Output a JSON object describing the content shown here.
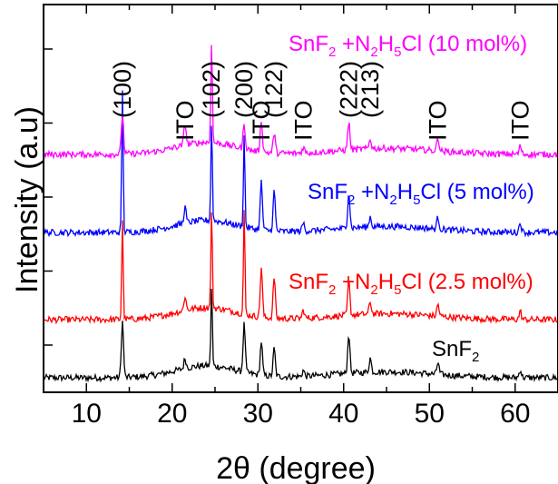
{
  "chart_data": {
    "type": "line",
    "title": "",
    "xlabel": "2θ (degree)",
    "ylabel": "Intensity (a.u)",
    "xlim": [
      5,
      65
    ],
    "x_ticks": [
      10,
      20,
      30,
      40,
      50,
      60
    ],
    "y_ticks_shown_as_labels": false,
    "grid": false,
    "legend": "inline labels beside each pattern",
    "peak_labels": [
      {
        "text": "(100)",
        "x": 14.2
      },
      {
        "text": "ITO",
        "x": 21.5
      },
      {
        "text": "(102)",
        "x": 24.6
      },
      {
        "text": "(200)",
        "x": 28.4
      },
      {
        "text": "ITO",
        "x": 30.4
      },
      {
        "text": "(122)",
        "x": 31.9
      },
      {
        "text": "ITO",
        "x": 35.3
      },
      {
        "text": "(222)",
        "x": 40.6
      },
      {
        "text": "(213)",
        "x": 43.1
      },
      {
        "text": "ITO",
        "x": 51.0
      },
      {
        "text": "ITO",
        "x": 60.6
      }
    ],
    "series": [
      {
        "name": "SnF2",
        "label_parts": [
          {
            "t": "SnF",
            "s": "n"
          },
          {
            "t": "2",
            "s": "sub"
          }
        ],
        "color": "#000000",
        "baseline": 0,
        "peaks": [
          [
            14.2,
            28
          ],
          [
            21.5,
            5
          ],
          [
            24.6,
            40
          ],
          [
            28.4,
            24
          ],
          [
            30.4,
            17
          ],
          [
            31.9,
            14
          ],
          [
            35.3,
            3
          ],
          [
            40.6,
            20
          ],
          [
            43.1,
            7
          ],
          [
            51.0,
            6
          ],
          [
            60.6,
            4
          ]
        ]
      },
      {
        "name": "SnF2 +N2H5Cl (2.5 mol%)",
        "label_parts": [
          {
            "t": "SnF",
            "s": "n"
          },
          {
            "t": "2",
            "s": "sub"
          },
          {
            "t": " +N",
            "s": "n"
          },
          {
            "t": "2",
            "s": "sub"
          },
          {
            "t": "H",
            "s": "n"
          },
          {
            "t": "5",
            "s": "sub"
          },
          {
            "t": "Cl (2.5 mol%)",
            "s": "n"
          }
        ],
        "color": "#ff0000",
        "baseline": 1,
        "peaks": [
          [
            14.2,
            50
          ],
          [
            21.5,
            7
          ],
          [
            24.6,
            49
          ],
          [
            28.4,
            52
          ],
          [
            30.4,
            25
          ],
          [
            31.9,
            21
          ],
          [
            35.3,
            4
          ],
          [
            40.6,
            17
          ],
          [
            43.1,
            6
          ],
          [
            51.0,
            6
          ],
          [
            60.6,
            4
          ]
        ]
      },
      {
        "name": "SnF2 +N2H5Cl (5 mol%)",
        "label_parts": [
          {
            "t": "SnF",
            "s": "n"
          },
          {
            "t": "2",
            "s": "sub"
          },
          {
            "t": " +N",
            "s": "n"
          },
          {
            "t": "2",
            "s": "sub"
          },
          {
            "t": "H",
            "s": "n"
          },
          {
            "t": "5",
            "s": "sub"
          },
          {
            "t": "Cl (5 mol%)",
            "s": "n"
          }
        ],
        "color": "#0000ff",
        "baseline": 2,
        "peaks": [
          [
            14.2,
            72
          ],
          [
            21.5,
            8
          ],
          [
            24.6,
            50
          ],
          [
            28.4,
            46
          ],
          [
            30.4,
            24
          ],
          [
            31.9,
            20
          ],
          [
            35.3,
            4
          ],
          [
            40.6,
            18
          ],
          [
            43.1,
            5
          ],
          [
            51.0,
            6
          ],
          [
            60.6,
            5
          ]
        ]
      },
      {
        "name": "SnF2 +N2H5Cl (10 mol%)",
        "label_parts": [
          {
            "t": "SnF",
            "s": "n"
          },
          {
            "t": "2",
            "s": "sub"
          },
          {
            "t": " +N",
            "s": "n"
          },
          {
            "t": "2",
            "s": "sub"
          },
          {
            "t": "H",
            "s": "n"
          },
          {
            "t": "5",
            "s": "sub"
          },
          {
            "t": "Cl (10 mol%)",
            "s": "n"
          }
        ],
        "color": "#ff00ff",
        "baseline": 3,
        "peaks": [
          [
            14.2,
            20
          ],
          [
            21.5,
            11
          ],
          [
            24.6,
            52
          ],
          [
            28.4,
            12
          ],
          [
            30.4,
            16
          ],
          [
            31.9,
            10
          ],
          [
            35.3,
            3
          ],
          [
            40.6,
            14
          ],
          [
            43.1,
            5
          ],
          [
            51.0,
            7
          ],
          [
            60.6,
            4
          ]
        ]
      }
    ]
  }
}
